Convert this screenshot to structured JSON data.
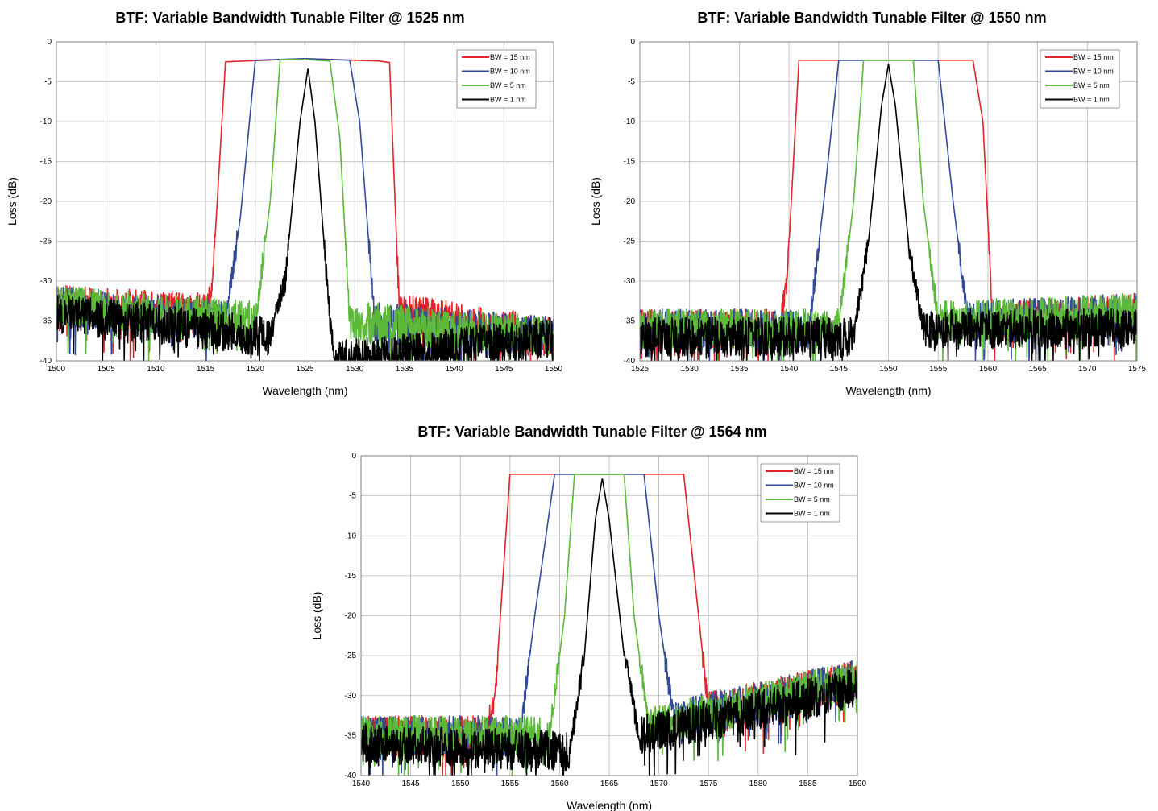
{
  "charts": [
    {
      "title": "BTF: Variable Bandwidth Tunable Filter @ 1525 nm",
      "xlabel": "Wavelength (nm)",
      "ylabel": "Loss (dB)",
      "xlim": [
        1500,
        1550
      ],
      "ylim": [
        -40,
        0
      ],
      "xticks": [
        1500,
        1505,
        1510,
        1515,
        1520,
        1525,
        1530,
        1535,
        1540,
        1545,
        1550
      ],
      "yticks": [
        0,
        -5,
        -10,
        -15,
        -20,
        -25,
        -30,
        -35,
        -40
      ],
      "grid": true,
      "legend_position": "top-right",
      "center": 1525
    },
    {
      "title": "BTF: Variable Bandwidth Tunable Filter @ 1550 nm",
      "xlabel": "Wavelength (nm)",
      "ylabel": "Loss (dB)",
      "xlim": [
        1525,
        1575
      ],
      "ylim": [
        -40,
        0
      ],
      "xticks": [
        1525,
        1530,
        1535,
        1540,
        1545,
        1550,
        1555,
        1560,
        1565,
        1570,
        1575
      ],
      "yticks": [
        0,
        -5,
        -10,
        -15,
        -20,
        -25,
        -30,
        -35,
        -40
      ],
      "grid": true,
      "legend_position": "top-right",
      "center": 1550
    },
    {
      "title": "BTF: Variable Bandwidth Tunable Filter @ 1564 nm",
      "xlabel": "Wavelength (nm)",
      "ylabel": "Loss (dB)",
      "xlim": [
        1540,
        1590
      ],
      "ylim": [
        -40,
        0
      ],
      "xticks": [
        1540,
        1545,
        1550,
        1555,
        1560,
        1565,
        1570,
        1575,
        1580,
        1585,
        1590
      ],
      "yticks": [
        0,
        -5,
        -10,
        -15,
        -20,
        -25,
        -30,
        -35,
        -40
      ],
      "grid": true,
      "legend_position": "top-right",
      "center": 1564
    }
  ],
  "series": [
    {
      "name": "BW = 15 nm",
      "color": "#e3232a",
      "bandwidth": 15
    },
    {
      "name": "BW = 10 nm",
      "color": "#33499a",
      "bandwidth": 10
    },
    {
      "name": "BW = 5 nm",
      "color": "#5cb93a",
      "bandwidth": 5
    },
    {
      "name": "BW = 1 nm",
      "color": "#000000",
      "bandwidth": 1
    }
  ],
  "chart_data": [
    {
      "type": "line",
      "title": "BTF: Variable Bandwidth Tunable Filter @ 1525 nm",
      "xlabel": "Wavelength (nm)",
      "ylabel": "Loss (dB)",
      "xlim": [
        1500,
        1550
      ],
      "ylim": [
        -40,
        0
      ],
      "series": [
        {
          "name": "BW = 15 nm",
          "x": [
            1500,
            1515,
            1515.7,
            1517,
            1525,
            1532.5,
            1533.5,
            1534.5,
            1550
          ],
          "y": [
            -33,
            -34,
            -30,
            -2.5,
            -2.1,
            -2.4,
            -2.6,
            -34,
            -37
          ]
        },
        {
          "name": "BW = 10 nm",
          "x": [
            1500,
            1517,
            1518.5,
            1520,
            1525,
            1529.5,
            1530.5,
            1532,
            1550
          ],
          "y": [
            -33,
            -35,
            -22,
            -2.3,
            -2.1,
            -2.3,
            -10,
            -35,
            -37
          ]
        },
        {
          "name": "BW = 5 nm",
          "x": [
            1500,
            1520,
            1521.5,
            1522.5,
            1525,
            1527.5,
            1528.5,
            1529.5,
            1550
          ],
          "y": [
            -33,
            -35,
            -20,
            -2.2,
            -2.2,
            -2.4,
            -12,
            -35,
            -37
          ]
        },
        {
          "name": "BW = 1 nm",
          "x": [
            1500,
            1521.5,
            1523,
            1524.5,
            1525.3,
            1526,
            1527.5,
            1528,
            1550
          ],
          "y": [
            -34,
            -37,
            -30,
            -10,
            -3.3,
            -10,
            -35,
            -40,
            -37
          ]
        }
      ]
    },
    {
      "type": "line",
      "title": "BTF: Variable Bandwidth Tunable Filter @ 1550 nm",
      "xlabel": "Wavelength (nm)",
      "ylabel": "Loss (dB)",
      "xlim": [
        1525,
        1575
      ],
      "ylim": [
        -40,
        0
      ],
      "series": [
        {
          "name": "BW = 15 nm",
          "x": [
            1525,
            1539,
            1539.8,
            1541,
            1550,
            1558.5,
            1559.5,
            1560.5,
            1575
          ],
          "y": [
            -36,
            -36,
            -30,
            -2.3,
            -2.3,
            -2.3,
            -10,
            -35,
            -34
          ]
        },
        {
          "name": "BW = 10 nm",
          "x": [
            1525,
            1542,
            1543.5,
            1545,
            1550,
            1555,
            1556.5,
            1558,
            1575
          ],
          "y": [
            -36,
            -36,
            -20,
            -2.3,
            -2.3,
            -2.3,
            -20,
            -35,
            -34
          ]
        },
        {
          "name": "BW = 5 nm",
          "x": [
            1525,
            1545,
            1546.5,
            1547.5,
            1550,
            1552.5,
            1553.5,
            1555,
            1575
          ],
          "y": [
            -36,
            -36,
            -20,
            -2.3,
            -2.3,
            -2.3,
            -20,
            -35,
            -34
          ]
        },
        {
          "name": "BW = 1 nm",
          "x": [
            1525,
            1546.5,
            1548,
            1549.3,
            1550,
            1550.7,
            1552,
            1553.5,
            1575
          ],
          "y": [
            -37,
            -37,
            -25,
            -8,
            -2.8,
            -8,
            -25,
            -36,
            -36
          ]
        }
      ]
    },
    {
      "type": "line",
      "title": "BTF: Variable Bandwidth Tunable Filter @ 1564 nm",
      "xlabel": "Wavelength (nm)",
      "ylabel": "Loss (dB)",
      "xlim": [
        1540,
        1590
      ],
      "ylim": [
        -40,
        0
      ],
      "series": [
        {
          "name": "BW = 15 nm",
          "x": [
            1540,
            1552.5,
            1553.5,
            1555,
            1564,
            1572.5,
            1574,
            1575,
            1590
          ],
          "y": [
            -35,
            -35,
            -30,
            -2.3,
            -2.3,
            -2.3,
            -20,
            -32,
            -28
          ]
        },
        {
          "name": "BW = 10 nm",
          "x": [
            1540,
            1556,
            1557.5,
            1559.5,
            1564,
            1568.5,
            1570,
            1571.5,
            1590
          ],
          "y": [
            -35,
            -35,
            -20,
            -2.3,
            -2.3,
            -2.3,
            -20,
            -33,
            -28
          ]
        },
        {
          "name": "BW = 5 nm",
          "x": [
            1540,
            1559,
            1560.5,
            1561.5,
            1564,
            1566.5,
            1567.5,
            1569,
            1590
          ],
          "y": [
            -35,
            -35,
            -20,
            -2.3,
            -2.3,
            -2.3,
            -20,
            -34,
            -28
          ]
        },
        {
          "name": "BW = 1 nm",
          "x": [
            1540,
            1561,
            1562.5,
            1563.6,
            1564.3,
            1565,
            1566.5,
            1568,
            1590
          ],
          "y": [
            -36,
            -37,
            -25,
            -8,
            -2.8,
            -8,
            -25,
            -35,
            -29
          ]
        }
      ]
    }
  ]
}
